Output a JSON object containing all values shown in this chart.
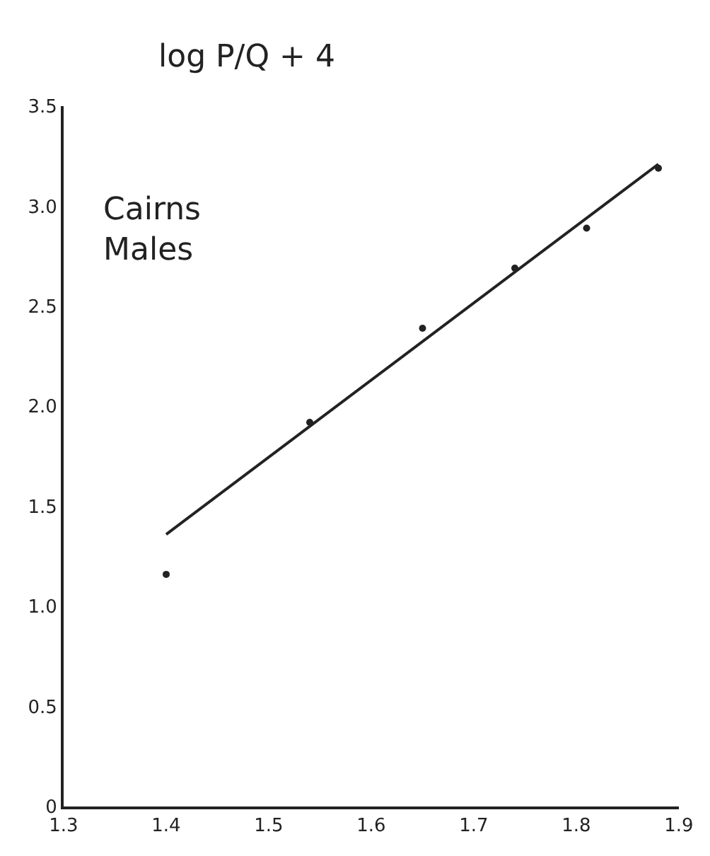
{
  "chart_data": {
    "type": "scatter",
    "ylabel": "log P/Q + 4",
    "annotations": [
      "Cairns\nMales"
    ],
    "xlim": [
      1.3,
      1.9
    ],
    "ylim": [
      0,
      3.5
    ],
    "xticks": [
      1.3,
      1.4,
      1.5,
      1.6,
      1.7,
      1.8,
      1.9
    ],
    "yticks": [
      0,
      0.5,
      {
        "value": 1.0,
        "label": "1.0"
      },
      1.5,
      {
        "value": 2.0,
        "label": "2.0"
      },
      2.5,
      {
        "value": 3.0,
        "label": "3.0"
      },
      3.5
    ],
    "series": [
      {
        "marker": "circle",
        "color": "#222222",
        "x": [
          1.4,
          1.54,
          1.65,
          1.74,
          1.81,
          1.88
        ],
        "values": [
          1.16,
          1.92,
          2.39,
          2.69,
          2.89,
          3.19
        ]
      },
      {
        "type": "line",
        "marker": "none",
        "color": "#222222",
        "x": [
          1.4,
          1.88
        ],
        "values": [
          1.36,
          3.21
        ]
      }
    ]
  }
}
